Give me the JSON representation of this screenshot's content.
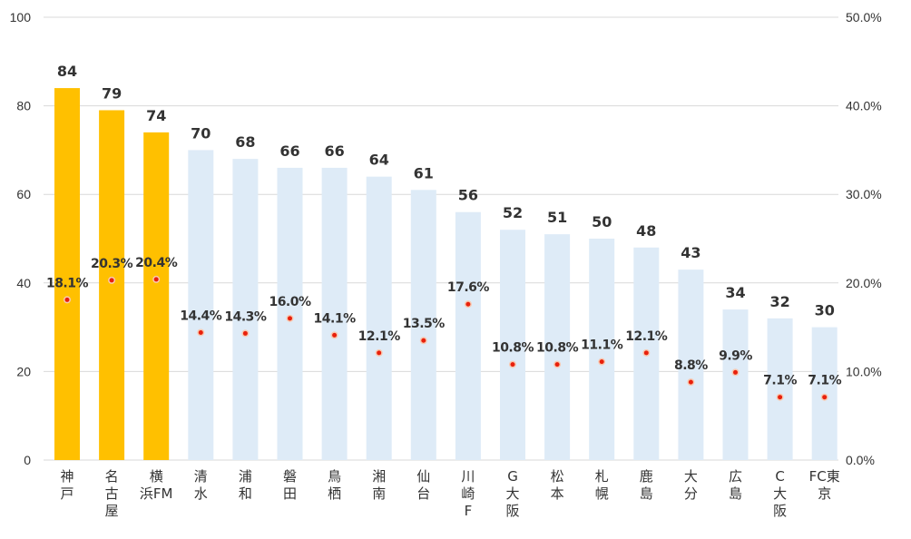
{
  "chart_data": {
    "type": "bar",
    "categories": [
      "神戸",
      "名古屋",
      "横浜FM",
      "清水",
      "浦和",
      "磐田",
      "鳥栖",
      "湘南",
      "仙台",
      "川崎F",
      "G大阪",
      "松本",
      "札幌",
      "鹿島",
      "大分",
      "広島",
      "C大阪",
      "FC東京"
    ],
    "category_lines": [
      [
        "神",
        "戸"
      ],
      [
        "名",
        "古",
        "屋"
      ],
      [
        "横",
        "浜FM"
      ],
      [
        "清",
        "水"
      ],
      [
        "浦",
        "和"
      ],
      [
        "磐",
        "田"
      ],
      [
        "鳥",
        "栖"
      ],
      [
        "湘",
        "南"
      ],
      [
        "仙",
        "台"
      ],
      [
        "川",
        "崎",
        "F"
      ],
      [
        "G",
        "大",
        "阪"
      ],
      [
        "松",
        "本"
      ],
      [
        "札",
        "幌"
      ],
      [
        "鹿",
        "島"
      ],
      [
        "大",
        "分"
      ],
      [
        "広",
        "島"
      ],
      [
        "C",
        "大",
        "阪"
      ],
      [
        "FC東",
        "京"
      ]
    ],
    "series": [
      {
        "name": "bars",
        "axis": "left",
        "values": [
          84,
          79,
          74,
          70,
          68,
          66,
          66,
          64,
          61,
          56,
          52,
          51,
          50,
          48,
          43,
          34,
          32,
          30
        ],
        "labels": [
          "84",
          "79",
          "74",
          "70",
          "68",
          "66",
          "66",
          "64",
          "61",
          "56",
          "52",
          "51",
          "50",
          "48",
          "43",
          "34",
          "32",
          "30"
        ]
      },
      {
        "name": "percent",
        "type": "scatter",
        "axis": "right",
        "values": [
          18.1,
          20.3,
          20.4,
          14.4,
          14.3,
          16.0,
          14.1,
          12.1,
          13.5,
          17.6,
          10.8,
          10.8,
          11.1,
          12.1,
          8.8,
          9.9,
          7.1,
          7.1
        ],
        "labels": [
          "18.1%",
          "20.3%",
          "20.4%",
          "14.4%",
          "14.3%",
          "16.0%",
          "14.1%",
          "12.1%",
          "13.5%",
          "17.6%",
          "10.8%",
          "10.8%",
          "11.1%",
          "12.1%",
          "8.8%",
          "9.9%",
          "7.1%",
          "7.1%"
        ]
      }
    ],
    "highlighted_count": 3,
    "ylim_left": [
      0,
      100
    ],
    "yticks_left": [
      "0",
      "20",
      "40",
      "60",
      "80",
      "100"
    ],
    "ylim_right": [
      0,
      50
    ],
    "yticks_right": [
      "0.0%",
      "10.0%",
      "20.0%",
      "30.0%",
      "40.0%",
      "50.0%"
    ],
    "grid": true,
    "colors": {
      "highlight_bar": "#FFC000",
      "bar": "#DEEBF7",
      "marker_fill": "#E8200C",
      "marker_ring": "#F8C8B0",
      "grid": "#D9D9D9",
      "text": "#333333"
    }
  }
}
